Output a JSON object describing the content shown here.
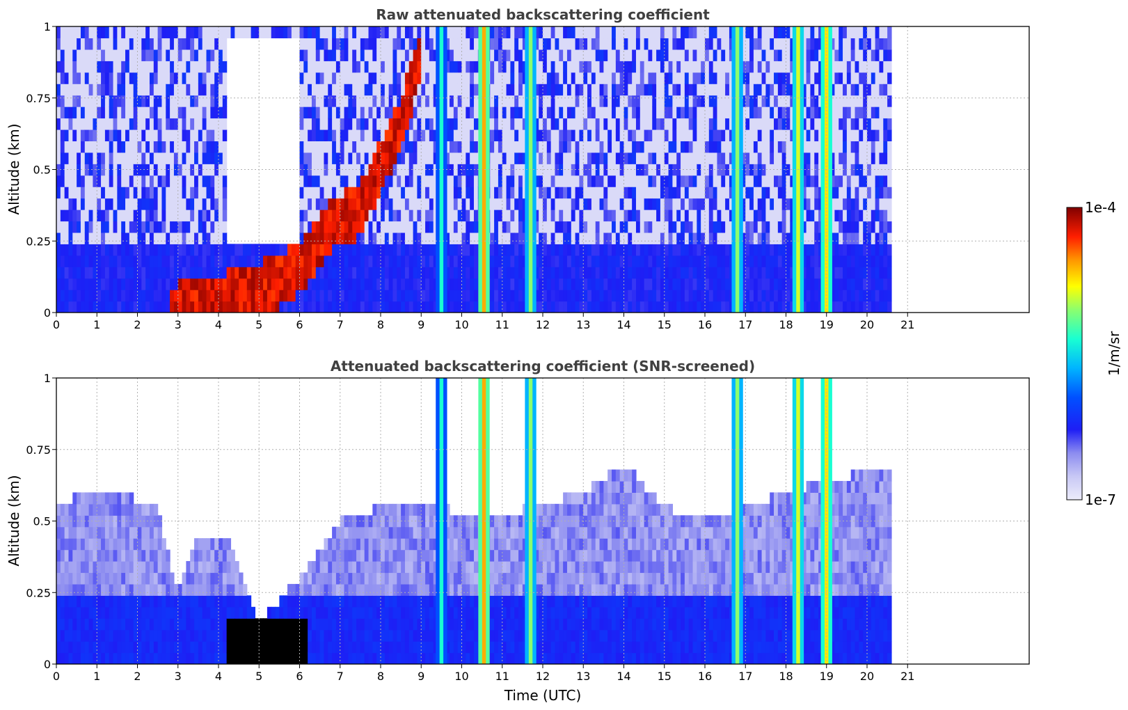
{
  "chart_data": [
    {
      "type": "heatmap",
      "title": "Raw attenuated backscattering coefficient",
      "xlabel": "",
      "ylabel": "Altitude (km)",
      "xlim": [
        0,
        24
      ],
      "ylim": [
        0,
        1
      ],
      "x_ticks": [
        "0",
        "1",
        "2",
        "3",
        "4",
        "5",
        "6",
        "7",
        "8",
        "9",
        "10",
        "11",
        "12",
        "13",
        "14",
        "15",
        "16",
        "17",
        "18",
        "19",
        "20",
        "21"
      ],
      "y_ticks": [
        "0",
        "0.25",
        "0.5",
        "0.75",
        "1"
      ],
      "grid": true,
      "data_end_time": 20.6,
      "colorscale": "jet",
      "clim": [
        "1e-7",
        "1e-4"
      ],
      "cloud_columns": [
        {
          "time": 9.5,
          "intensity": 0.45
        },
        {
          "time": 10.55,
          "intensity": 0.7
        },
        {
          "time": 11.7,
          "intensity": 0.55
        },
        {
          "time": 16.8,
          "intensity": 0.55
        },
        {
          "time": 18.3,
          "intensity": 0.6
        },
        {
          "time": 19.0,
          "intensity": 0.65
        }
      ],
      "boundary_layer_top": [
        {
          "time": 3.0,
          "altitude": 0.1
        },
        {
          "time": 4.5,
          "altitude": 0.15
        },
        {
          "time": 5.5,
          "altitude": 0.2
        },
        {
          "time": 6.0,
          "altitude": 0.25
        },
        {
          "time": 6.8,
          "altitude": 0.4
        },
        {
          "time": 7.5,
          "altitude": 0.45
        },
        {
          "time": 8.5,
          "altitude": 0.75
        },
        {
          "time": 9.0,
          "altitude": 1.0
        }
      ]
    },
    {
      "type": "heatmap",
      "title": "Attenuated backscattering coefficient (SNR-screened)",
      "xlabel": "Time (UTC)",
      "ylabel": "Altitude (km)",
      "xlim": [
        0,
        24
      ],
      "ylim": [
        0,
        1
      ],
      "x_ticks": [
        "0",
        "1",
        "2",
        "3",
        "4",
        "5",
        "6",
        "7",
        "8",
        "9",
        "10",
        "11",
        "12",
        "13",
        "14",
        "15",
        "16",
        "17",
        "18",
        "19",
        "20",
        "21"
      ],
      "y_ticks": [
        "0",
        "0.25",
        "0.5",
        "0.75",
        "1"
      ],
      "grid": true,
      "data_end_time": 20.6,
      "colorscale": "jet",
      "clim": [
        "1e-7",
        "1e-4"
      ],
      "cloud_columns": [
        {
          "time": 9.5,
          "intensity": 0.45
        },
        {
          "time": 10.55,
          "intensity": 0.7
        },
        {
          "time": 11.7,
          "intensity": 0.55
        },
        {
          "time": 16.8,
          "intensity": 0.55
        },
        {
          "time": 18.3,
          "intensity": 0.6
        },
        {
          "time": 19.0,
          "intensity": 0.65
        }
      ],
      "signal_top": [
        {
          "time": 0.0,
          "altitude": 0.55
        },
        {
          "time": 1.0,
          "altitude": 0.62
        },
        {
          "time": 2.5,
          "altitude": 0.55
        },
        {
          "time": 3.0,
          "altitude": 0.25
        },
        {
          "time": 3.5,
          "altitude": 0.45
        },
        {
          "time": 4.2,
          "altitude": 0.45
        },
        {
          "time": 5.0,
          "altitude": 0.15
        },
        {
          "time": 6.0,
          "altitude": 0.3
        },
        {
          "time": 7.0,
          "altitude": 0.5
        },
        {
          "time": 8.0,
          "altitude": 0.55
        },
        {
          "time": 9.0,
          "altitude": 0.55
        },
        {
          "time": 11.0,
          "altitude": 0.52
        },
        {
          "time": 13.0,
          "altitude": 0.6
        },
        {
          "time": 14.0,
          "altitude": 0.7
        },
        {
          "time": 15.0,
          "altitude": 0.55
        },
        {
          "time": 16.0,
          "altitude": 0.5
        },
        {
          "time": 18.0,
          "altitude": 0.6
        },
        {
          "time": 20.6,
          "altitude": 0.7
        }
      ]
    }
  ],
  "colorbar": {
    "label": "1/m/sr",
    "max_label": "1e-4",
    "min_label": "1e-7"
  }
}
